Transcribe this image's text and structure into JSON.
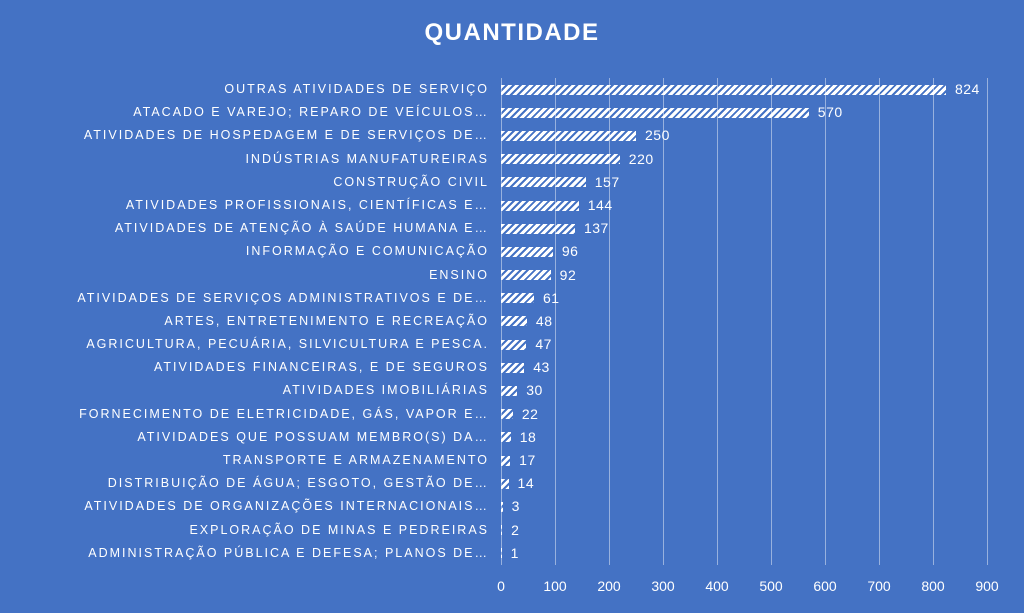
{
  "chart_data": {
    "type": "bar",
    "orientation": "horizontal",
    "title": "QUANTIDADE",
    "categories": [
      "OUTRAS ATIVIDADES DE SERVIÇO",
      "ATACADO E VAREJO; REPARO DE VEÍCULOS…",
      "ATIVIDADES DE HOSPEDAGEM E DE SERVIÇOS DE…",
      "INDÚSTRIAS MANUFATUREIRAS",
      "CONSTRUÇÃO CIVIL",
      "ATIVIDADES PROFISSIONAIS, CIENTÍFICAS E…",
      "ATIVIDADES DE ATENÇÃO À SAÚDE HUMANA E…",
      "INFORMAÇÃO E COMUNICAÇÃO",
      "ENSINO",
      "ATIVIDADES DE SERVIÇOS ADMINISTRATIVOS E DE…",
      "ARTES, ENTRETENIMENTO E RECREAÇÃO",
      "AGRICULTURA, PECUÁRIA, SILVICULTURA E PESCA.",
      "ATIVIDADES FINANCEIRAS, E DE SEGUROS",
      "ATIVIDADES IMOBILIÁRIAS",
      "FORNECIMENTO DE ELETRICIDADE, GÁS, VAPOR E…",
      "ATIVIDADES QUE POSSUAM MEMBRO(S) DA…",
      "TRANSPORTE E ARMAZENAMENTO",
      "DISTRIBUIÇÃO DE ÁGUA; ESGOTO, GESTÃO DE…",
      "ATIVIDADES DE ORGANIZAÇÕES INTERNACIONAIS…",
      "EXPLORAÇÃO DE MINAS E PEDREIRAS",
      "ADMINISTRAÇÃO PÚBLICA E DEFESA; PLANOS DE…"
    ],
    "values": [
      824,
      570,
      250,
      220,
      157,
      144,
      137,
      96,
      92,
      61,
      48,
      47,
      43,
      30,
      22,
      18,
      17,
      14,
      3,
      2,
      1
    ],
    "x_ticks": [
      0,
      100,
      200,
      300,
      400,
      500,
      600,
      700,
      800,
      900
    ],
    "xlim": [
      0,
      900
    ],
    "grid": true,
    "data_labels": true,
    "legend": "none",
    "colors": {
      "background": "#4472C4",
      "bar_fill_pattern": "white-diagonal-stripes",
      "bar_foreground": "#FFFFFF",
      "text": "#FFFFFF",
      "gridline": "rgba(255,255,255,0.45)"
    }
  }
}
